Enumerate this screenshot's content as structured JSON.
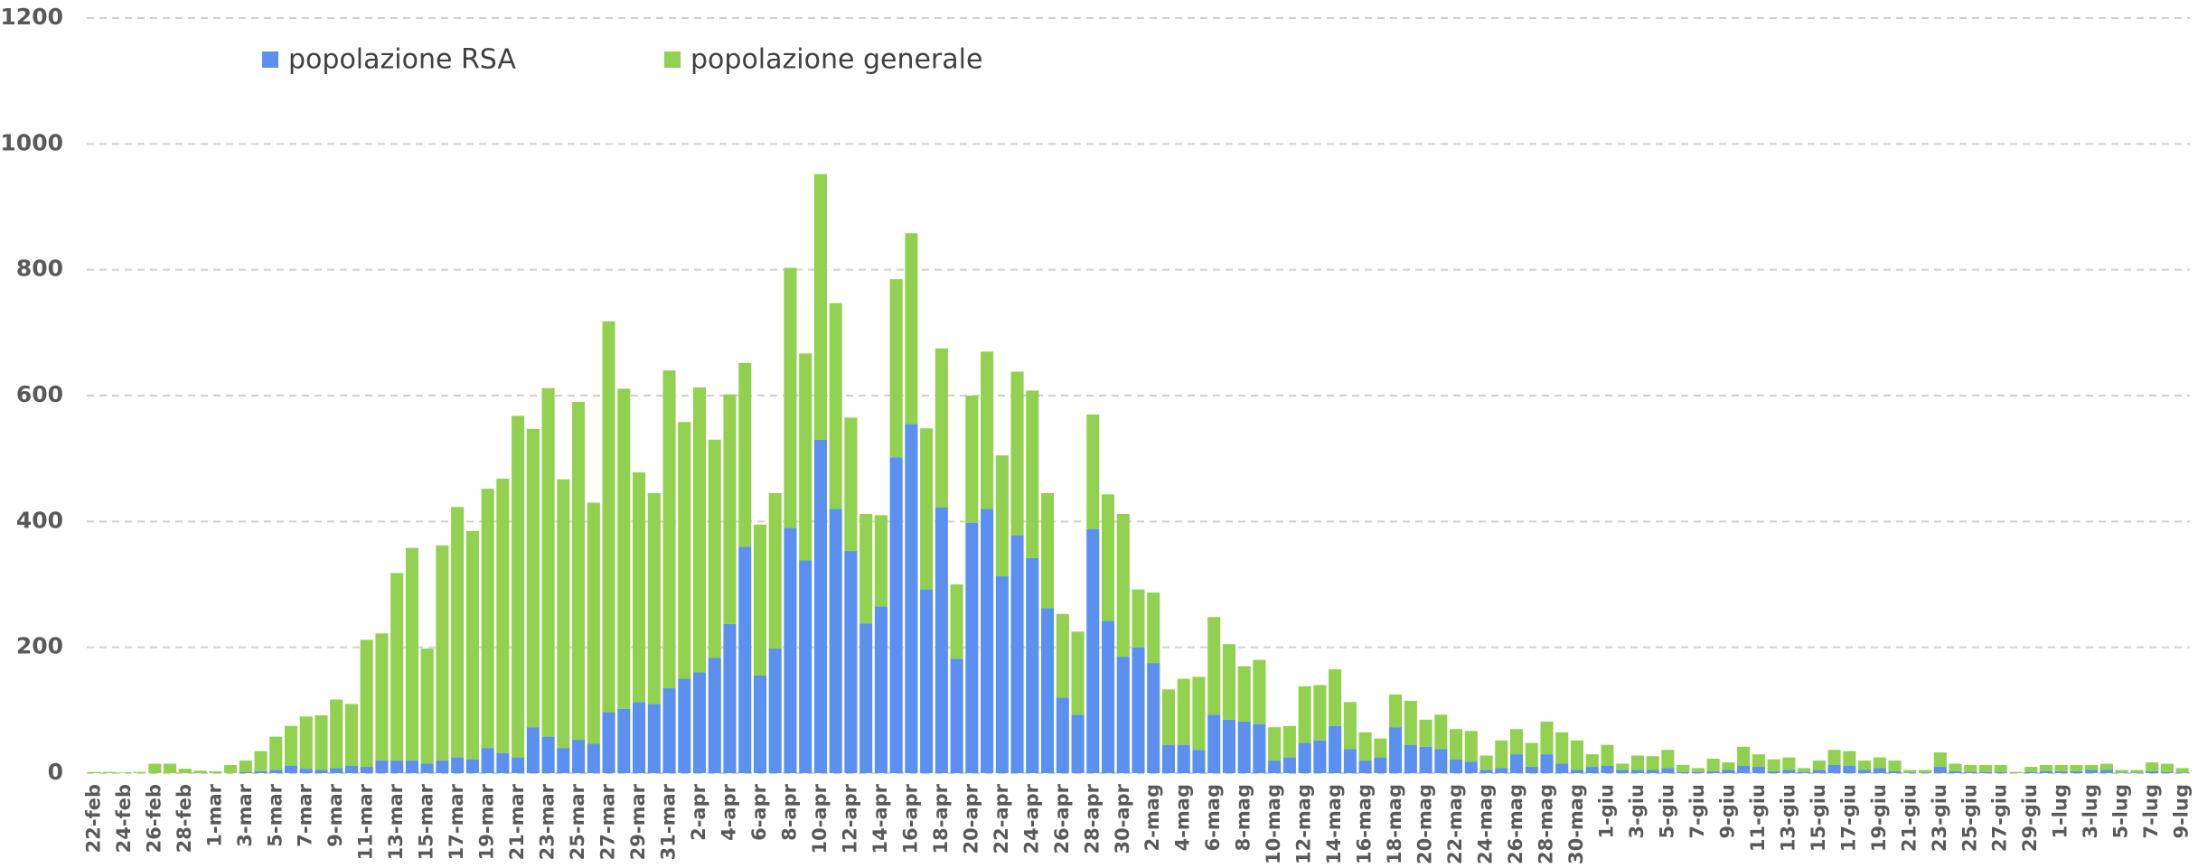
{
  "chart_data": {
    "type": "bar",
    "stacked": true,
    "grid": true,
    "categories": [
      "22-feb",
      null,
      "24-feb",
      null,
      "26-feb",
      null,
      "28-feb",
      null,
      "1-mar",
      null,
      "3-mar",
      null,
      "5-mar",
      null,
      "7-mar",
      null,
      "9-mar",
      null,
      "11-mar",
      null,
      "13-mar",
      null,
      "15-mar",
      null,
      "17-mar",
      null,
      "19-mar",
      null,
      "21-mar",
      null,
      "23-mar",
      null,
      "25-mar",
      null,
      "27-mar",
      null,
      "29-mar",
      null,
      "31-mar",
      null,
      "2-apr",
      null,
      "4-apr",
      null,
      "6-apr",
      null,
      "8-apr",
      null,
      "10-apr",
      null,
      "12-apr",
      null,
      "14-apr",
      null,
      "16-apr",
      null,
      "18-apr",
      null,
      "20-apr",
      null,
      "22-apr",
      null,
      "24-apr",
      null,
      "26-apr",
      null,
      "28-apr",
      null,
      "30-apr",
      null,
      "2-mag",
      null,
      "4-mag",
      null,
      "6-mag",
      null,
      "8-mag",
      null,
      "10-mag",
      null,
      "12-mag",
      null,
      "14-mag",
      null,
      "16-mag",
      null,
      "18-mag",
      null,
      "20-mag",
      null,
      "22-mag",
      null,
      "24-mag",
      null,
      "26-mag",
      null,
      "28-mag",
      null,
      "30-mag",
      null,
      "1-giu",
      null,
      "3-giu",
      null,
      "5-giu",
      null,
      "7-giu",
      null,
      "9-giu",
      null,
      "11-giu",
      null,
      "13-giu",
      null,
      "15-giu",
      null,
      "17-giu",
      null,
      "19-giu",
      null,
      "21-giu",
      null,
      "23-giu",
      null,
      "25-giu",
      null,
      "27-giu",
      null,
      "29-giu",
      null,
      "1-lug",
      null,
      "3-lug",
      null,
      "5-lug",
      null,
      "7-lug",
      null,
      "9-lug"
    ],
    "series": [
      {
        "name": "popolazione RSA",
        "color": "#5b8ff0",
        "values": [
          0,
          0,
          0,
          0,
          0,
          0,
          0,
          0,
          0,
          0,
          2,
          3,
          5,
          12,
          7,
          5,
          8,
          12,
          10,
          20,
          20,
          20,
          15,
          20,
          25,
          22,
          40,
          32,
          25,
          73,
          58,
          40,
          53,
          47,
          97,
          102,
          113,
          110,
          135,
          150,
          160,
          183,
          237,
          360,
          155,
          198,
          390,
          338,
          530,
          420,
          353,
          238,
          265,
          502,
          555,
          292,
          422,
          182,
          398,
          420,
          313,
          378,
          342,
          262,
          120,
          93,
          388,
          242,
          185,
          200,
          175,
          45,
          45,
          37,
          93,
          85,
          82,
          78,
          20,
          25,
          48,
          52,
          75,
          38,
          20,
          25,
          73,
          45,
          42,
          38,
          22,
          18,
          5,
          8,
          30,
          10,
          30,
          15,
          5,
          10,
          12,
          5,
          5,
          5,
          8,
          2,
          2,
          3,
          5,
          12,
          10,
          3,
          5,
          2,
          5,
          13,
          12,
          5,
          8,
          3,
          1,
          1,
          10,
          3,
          2,
          2,
          2,
          0,
          2,
          3,
          3,
          3,
          5,
          5,
          1,
          1,
          3,
          2,
          1
        ]
      },
      {
        "name": "popolazione generale",
        "color": "#92d050",
        "values": [
          2,
          2,
          1,
          2,
          15,
          15,
          7,
          4,
          3,
          13,
          18,
          32,
          53,
          63,
          83,
          87,
          109,
          98,
          202,
          202,
          298,
          338,
          183,
          342,
          398,
          363,
          412,
          436,
          543,
          474,
          554,
          427,
          537,
          383,
          621,
          509,
          365,
          335,
          505,
          408,
          453,
          347,
          365,
          292,
          240,
          247,
          413,
          329,
          422,
          327,
          212,
          174,
          145,
          283,
          303,
          256,
          253,
          118,
          202,
          250,
          192,
          260,
          266,
          183,
          133,
          132,
          182,
          201,
          227,
          92,
          112,
          88,
          105,
          116,
          155,
          120,
          88,
          102,
          53,
          50,
          90,
          88,
          90,
          75,
          45,
          30,
          52,
          70,
          43,
          55,
          48,
          49,
          23,
          44,
          40,
          38,
          52,
          50,
          47,
          20,
          33,
          10,
          23,
          22,
          29,
          11,
          6,
          20,
          12,
          30,
          20,
          19,
          20,
          6,
          15,
          24,
          23,
          15,
          17,
          17,
          4,
          4,
          23,
          12,
          11,
          11,
          11,
          2,
          8,
          10,
          10,
          10,
          8,
          10,
          4,
          4,
          14,
          13,
          7
        ]
      }
    ],
    "ylim": [
      0,
      1200
    ],
    "yticks": [
      0,
      200,
      400,
      600,
      800,
      1000,
      1200
    ]
  }
}
